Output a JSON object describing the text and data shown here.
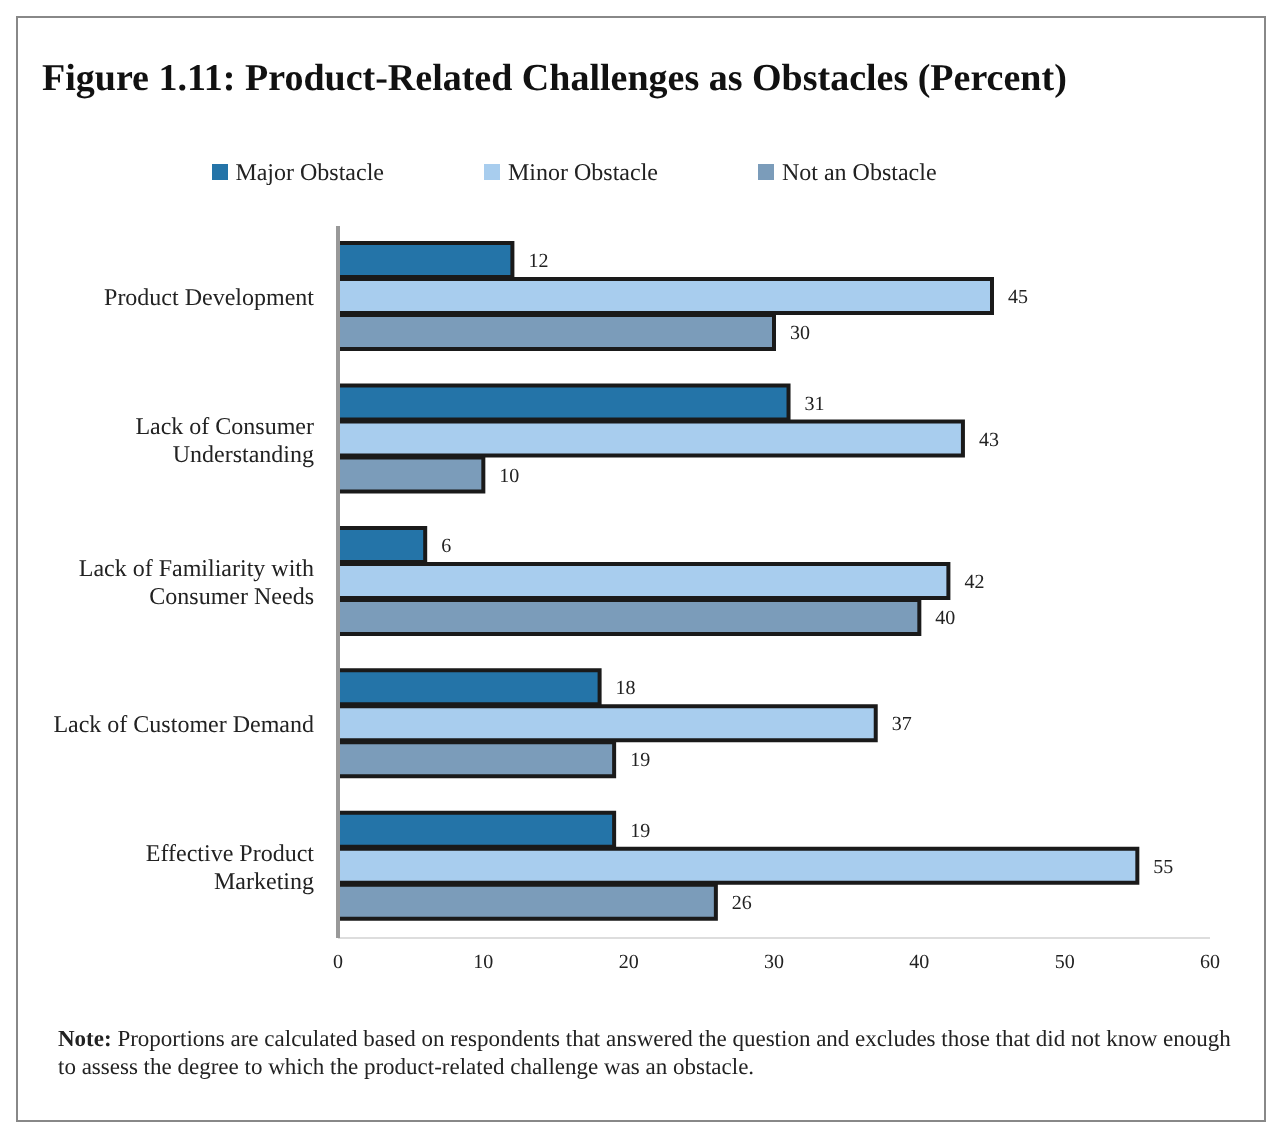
{
  "chart_data": {
    "type": "bar",
    "orientation": "horizontal",
    "title": "Figure 1.11: Product-Related Challenges as Obstacles (Percent)",
    "categories": [
      "Product Development",
      "Lack of Consumer Understanding",
      "Lack of Familiarity with Consumer Needs",
      "Lack of Customer Demand",
      "Effective Product Marketing"
    ],
    "series": [
      {
        "name": "Major Obstacle",
        "color": "#2474a8",
        "values": [
          12,
          31,
          6,
          18,
          19
        ]
      },
      {
        "name": "Minor Obstacle",
        "color": "#a8cdee",
        "values": [
          45,
          43,
          42,
          37,
          55
        ]
      },
      {
        "name": "Not an Obstacle",
        "color": "#7b9cba",
        "values": [
          30,
          10,
          40,
          19,
          26
        ]
      }
    ],
    "xlim": [
      0,
      60
    ],
    "xticks": [
      0,
      10,
      20,
      30,
      40,
      50,
      60
    ],
    "data_labels": true,
    "legend": "top",
    "grid": false,
    "annotations": [
      "Note: Proportions are calculated based on respondents that answered the question and excludes those that did not know enough to assess the degree to which  the product-related challenge was an obstacle."
    ]
  }
}
